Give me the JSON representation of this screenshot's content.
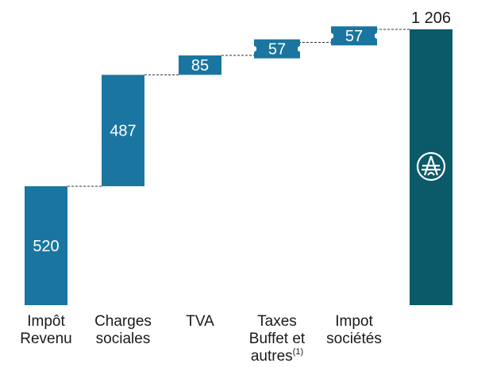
{
  "chart_data": {
    "type": "bar",
    "subtype": "waterfall",
    "title": "",
    "xlabel": "",
    "ylabel": "",
    "categories": [
      [
        "Impôt",
        "Revenu"
      ],
      [
        "Charges",
        "sociales"
      ],
      [
        "TVA"
      ],
      [
        "Taxes",
        "Buffet et",
        "autres"
      ],
      [
        "Impot",
        "sociétés"
      ],
      [
        ""
      ]
    ],
    "footnote_marks": [
      "",
      "",
      "",
      "(1)",
      "",
      ""
    ],
    "values": [
      520,
      487,
      85,
      57,
      57,
      1206
    ],
    "value_labels": [
      "520",
      "487",
      "85",
      "57",
      "57",
      "1 206"
    ],
    "is_total": [
      false,
      false,
      false,
      false,
      false,
      true
    ],
    "ylim": [
      0,
      1206
    ],
    "grid": false,
    "legend": "none",
    "total_icon": "tour-eiffel-icon",
    "colors": {
      "increment": "#1a76a0",
      "total": "#0b5a6a",
      "connector": "#333333",
      "icon": "#ffffff"
    }
  }
}
